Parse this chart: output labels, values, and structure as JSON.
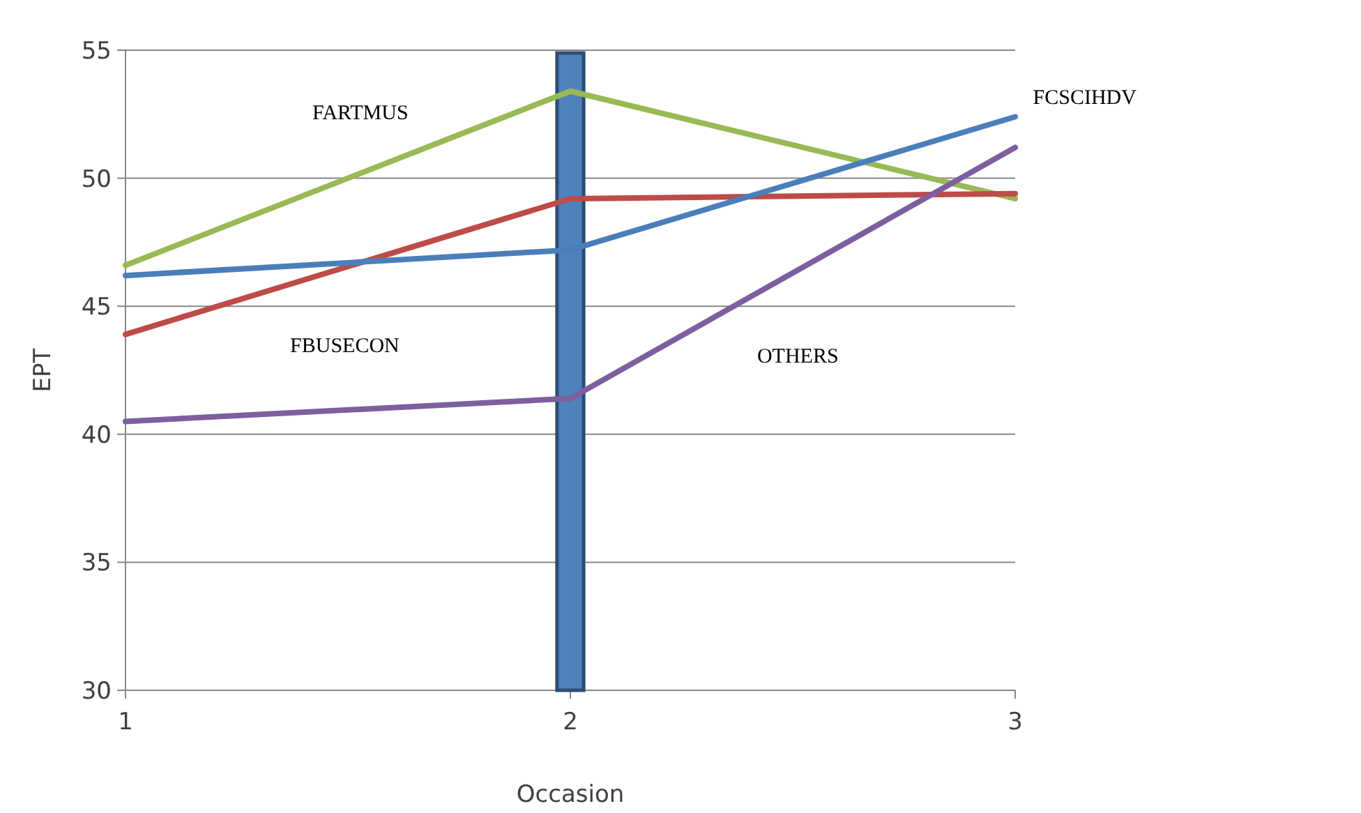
{
  "chart_data": {
    "type": "line",
    "xlabel": "Occasion",
    "ylabel": "EPT",
    "x": [
      1,
      2,
      3
    ],
    "series": [
      {
        "name": "FARTMUS",
        "color": "#98b954",
        "values": [
          46.6,
          53.4,
          49.2
        ]
      },
      {
        "name": "FBUSECON",
        "color": "#be4b48",
        "values": [
          43.9,
          49.2,
          49.4
        ]
      },
      {
        "name": "OTHERS",
        "color": "#7d5fa0",
        "values": [
          40.5,
          41.4,
          51.2
        ]
      },
      {
        "name": "FCSCIHDV",
        "color": "#4a7ebb",
        "values": [
          46.2,
          47.2,
          52.4
        ]
      }
    ],
    "xlim": [
      1,
      3
    ],
    "xticks": [
      1,
      2,
      3
    ],
    "ylim": [
      30,
      55
    ],
    "yticks": [
      30,
      35,
      40,
      45,
      50,
      55
    ],
    "grid": "y",
    "marker": "none",
    "line_style": "solid",
    "bands": [
      {
        "axis": "x",
        "from": 1.97,
        "to": 2.03,
        "color": "#4f81bd"
      }
    ]
  }
}
